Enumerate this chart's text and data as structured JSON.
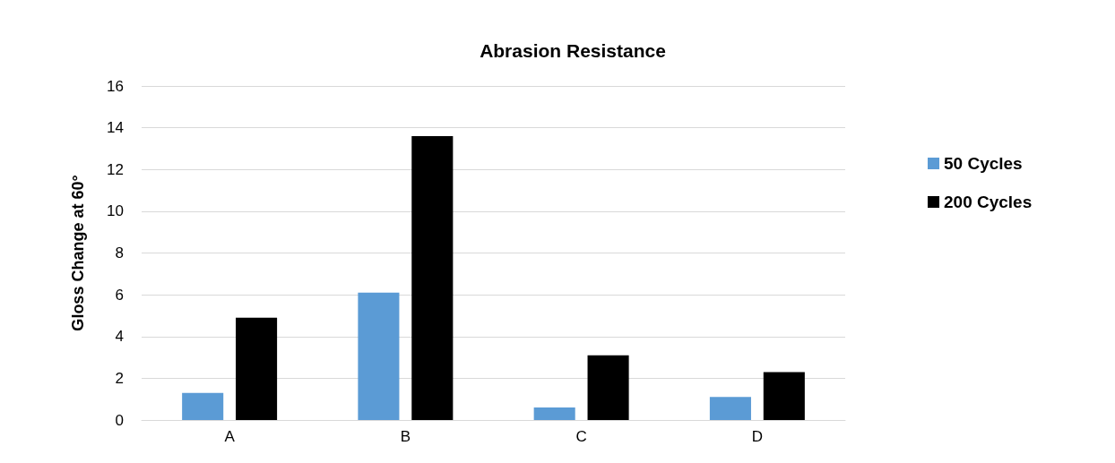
{
  "chart_data": {
    "type": "bar",
    "title": "Abrasion Resistance",
    "ylabel": "Gloss Change at 60°",
    "categories": [
      "A",
      "B",
      "C",
      "D"
    ],
    "series": [
      {
        "name": "50 Cycles",
        "color": "#5b9bd5",
        "values": [
          1.3,
          6.1,
          0.6,
          1.1
        ]
      },
      {
        "name": "200 Cycles",
        "color": "#000000",
        "values": [
          4.9,
          13.6,
          3.1,
          2.3
        ]
      }
    ],
    "ylim": [
      0,
      16
    ],
    "yticks": [
      0,
      2,
      4,
      6,
      8,
      10,
      12,
      14,
      16
    ],
    "grid": "y",
    "legend": "right"
  }
}
